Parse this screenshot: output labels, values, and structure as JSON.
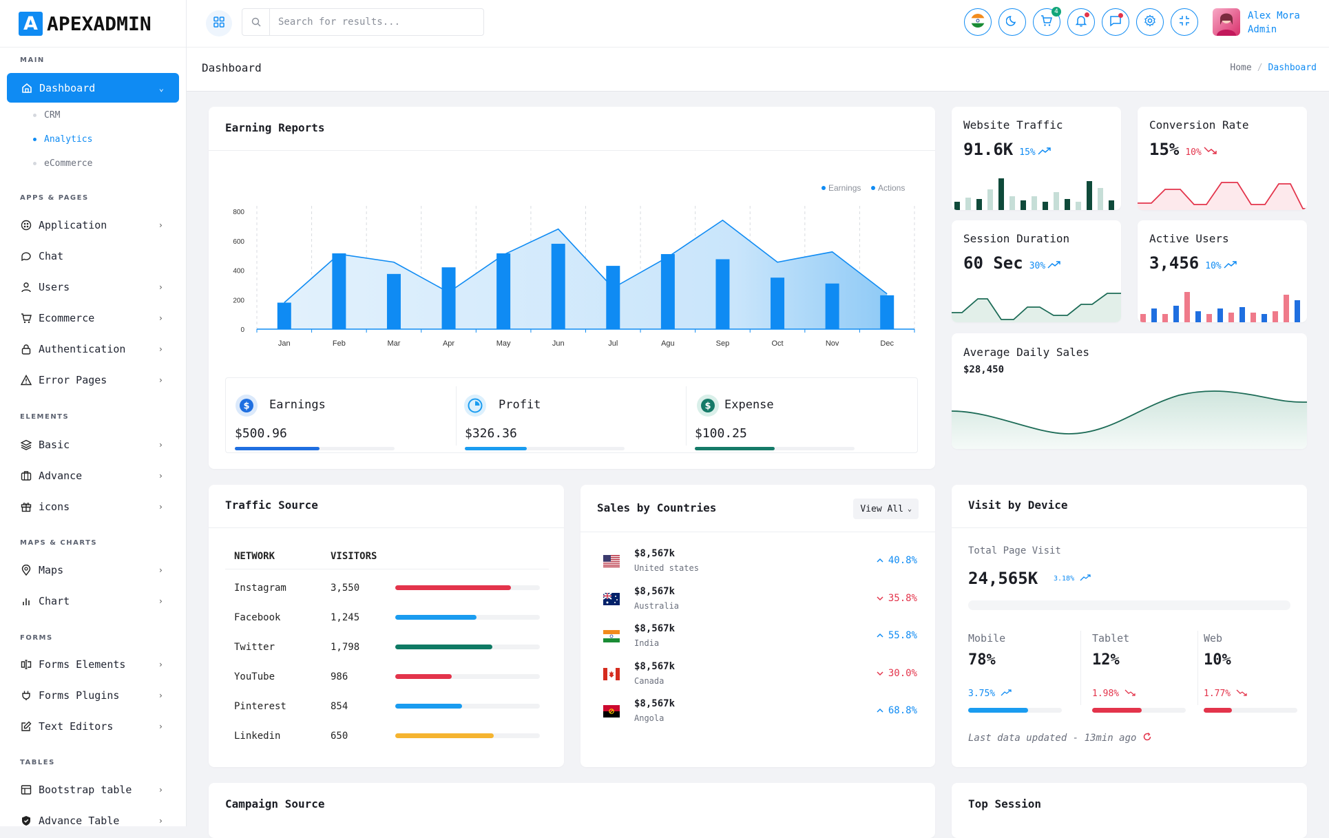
{
  "brand": {
    "logo_letter": "A",
    "name": "APEXADMIN"
  },
  "sidebar": {
    "sections": {
      "main": "MAIN",
      "apps": "APPS & PAGES",
      "elements": "ELEMENTS",
      "maps": "MAPS & CHARTS",
      "forms": "FORMS",
      "tables": "TABLES"
    },
    "dashboard": "Dashboard",
    "sub": [
      "CRM",
      "Analytics",
      "eCommerce"
    ],
    "apps": [
      "Application",
      "Chat",
      "Users",
      "Ecommerce",
      "Authentication",
      "Error Pages"
    ],
    "elements": [
      "Basic",
      "Advance",
      "icons"
    ],
    "maps": [
      "Maps",
      "Chart"
    ],
    "forms": [
      "Forms Elements",
      "Forms Plugins",
      "Text Editors"
    ],
    "tables": [
      "Bootstrap table",
      "Advance Table"
    ]
  },
  "topbar": {
    "search_placeholder": "Search for results...",
    "cart_badge": "4",
    "user_name": "Alex Mora",
    "user_role": "Admin"
  },
  "page": {
    "title": "Dashboard",
    "crumb_home": "Home",
    "crumb_sep": "/",
    "crumb_current": "Dashboard"
  },
  "earning": {
    "title": "Earning Reports",
    "legend": [
      "Earnings",
      "Actions"
    ],
    "kpis": [
      {
        "label": "Earnings",
        "value": "$500.96",
        "progress": 0.53,
        "color": "#1f6fe0"
      },
      {
        "label": "Profit",
        "value": "$326.36",
        "progress": 0.39,
        "color": "#1a9cf0"
      },
      {
        "label": "Expense",
        "value": "$100.25",
        "progress": 0.5,
        "color": "#157a68"
      }
    ]
  },
  "chart_data": {
    "type": "bar",
    "categories": [
      "Jan",
      "Feb",
      "Mar",
      "Apr",
      "May",
      "Jun",
      "Jul",
      "Agu",
      "Sep",
      "Oct",
      "Nov",
      "Dec"
    ],
    "ylim": [
      0,
      800
    ],
    "yticks": [
      0,
      200,
      400,
      600,
      800
    ],
    "series": [
      {
        "name": "Earnings",
        "type": "bar",
        "values": [
          180,
          515,
          375,
          420,
          515,
          580,
          430,
          510,
          475,
          350,
          310,
          230
        ]
      },
      {
        "name": "Actions",
        "type": "area",
        "values": [
          180,
          510,
          455,
          250,
          505,
          680,
          280,
          490,
          740,
          455,
          525,
          240
        ]
      }
    ],
    "legend_position": "top-right",
    "grid": "vertical dashed"
  },
  "stats": [
    {
      "title": "Website Traffic",
      "value": "91.6K",
      "pct": "15%",
      "trend": "up"
    },
    {
      "title": "Conversion Rate",
      "value": "15%",
      "pct": "10%",
      "trend": "down"
    },
    {
      "title": "Session Duration",
      "value": "60 Sec",
      "pct": "30%",
      "trend": "up"
    },
    {
      "title": "Active Users",
      "value": "3,456",
      "pct": "10%",
      "trend": "up"
    }
  ],
  "avg_sales": {
    "title": "Average Daily Sales",
    "value": "$28,450"
  },
  "traffic": {
    "title": "Traffic Source",
    "headers": [
      "NETWORK",
      "VISITORS"
    ],
    "rows": [
      {
        "network": "Instagram",
        "visitors": "3,550",
        "progress": 0.8,
        "color": "#e3344b"
      },
      {
        "network": "Facebook",
        "visitors": "1,245",
        "progress": 0.56,
        "color": "#1a9cf0"
      },
      {
        "network": "Twitter",
        "visitors": "1,798",
        "progress": 0.67,
        "color": "#0f7a64"
      },
      {
        "network": "YouTube",
        "visitors": "986",
        "progress": 0.39,
        "color": "#e3344b"
      },
      {
        "network": "Pinterest",
        "visitors": "854",
        "progress": 0.46,
        "color": "#1a9cf0"
      },
      {
        "network": "Linkedin",
        "visitors": "650",
        "progress": 0.68,
        "color": "#f5b430"
      }
    ]
  },
  "countries": {
    "title": "Sales by Countries",
    "view_all": "View All",
    "rows": [
      {
        "value": "$8,567k",
        "name": "United states",
        "pct": "40.8%",
        "trend": "up"
      },
      {
        "value": "$8,567k",
        "name": "Australia",
        "pct": "35.8%",
        "trend": "down"
      },
      {
        "value": "$8,567k",
        "name": "India",
        "pct": "55.8%",
        "trend": "up"
      },
      {
        "value": "$8,567k",
        "name": "Canada",
        "pct": "30.0%",
        "trend": "down"
      },
      {
        "value": "$8,567k",
        "name": "Angola",
        "pct": "68.8%",
        "trend": "up"
      }
    ]
  },
  "device": {
    "title": "Visit by Device",
    "total_label": "Total Page Visit",
    "total_value": "24,565K",
    "total_pct": "3.18%",
    "items": [
      {
        "label": "Mobile",
        "value": "78%",
        "pct": "3.75%",
        "trend": "up",
        "progress": 0.64,
        "color": "#1a9cf0"
      },
      {
        "label": "Tablet",
        "value": "12%",
        "pct": "1.98%",
        "trend": "down",
        "progress": 0.53,
        "color": "#e3344b"
      },
      {
        "label": "Web",
        "value": "10%",
        "pct": "1.77%",
        "trend": "down",
        "progress": 0.3,
        "color": "#e3344b"
      }
    ],
    "updated": "Last data updated - 13min ago"
  },
  "bottom": {
    "campaign": "Campaign Source",
    "session": "Top Session"
  }
}
